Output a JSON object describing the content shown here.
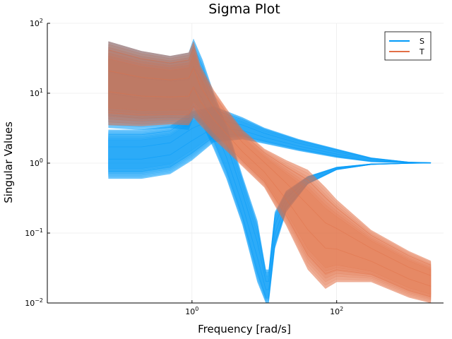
{
  "chart_data": {
    "type": "line",
    "title": "Sigma Plot",
    "xlabel": "Frequency [rad/s]",
    "ylabel": "Singular Values",
    "xscale": "log",
    "yscale": "log",
    "xlim": [
      0.01,
      3000
    ],
    "ylim": [
      0.01,
      100
    ],
    "x_ticks": [
      {
        "value": 1,
        "base": "10",
        "exp": "0"
      },
      {
        "value": 100,
        "base": "10",
        "exp": "2"
      }
    ],
    "y_ticks": [
      {
        "value": 0.01,
        "base": "10",
        "exp": "−2"
      },
      {
        "value": 0.1,
        "base": "10",
        "exp": "−1"
      },
      {
        "value": 1,
        "base": "10",
        "exp": "0"
      },
      {
        "value": 10,
        "base": "10",
        "exp": "1"
      },
      {
        "value": 100,
        "base": "10",
        "exp": "2"
      }
    ],
    "grid": true,
    "legend_position": "top-right",
    "series": [
      {
        "name": "S",
        "color": "#009af9",
        "bands": [
          {
            "points": [
              [
                0.07,
                0.6,
                3.0
              ],
              [
                0.2,
                0.6,
                3.0
              ],
              [
                0.5,
                0.7,
                3.4
              ],
              [
                1.0,
                1.1,
                5.5
              ],
              [
                2.0,
                2.0,
                6.5
              ],
              [
                5.0,
                2.2,
                4.5
              ],
              [
                10,
                1.9,
                3.2
              ],
              [
                30,
                1.5,
                2.2
              ],
              [
                100,
                1.2,
                1.6
              ],
              [
                300,
                1.04,
                1.2
              ],
              [
                1000,
                1.0,
                1.04
              ],
              [
                2000,
                1.0,
                1.02
              ]
            ]
          },
          {
            "points": [
              [
                0.07,
                3.2,
                55
              ],
              [
                0.2,
                3.0,
                40
              ],
              [
                0.5,
                3.2,
                34
              ],
              [
                0.9,
                3.0,
                38
              ],
              [
                1.05,
                4.5,
                60
              ],
              [
                1.4,
                3.5,
                30
              ],
              [
                2.0,
                1.6,
                10
              ],
              [
                3.0,
                0.6,
                3.5
              ],
              [
                5.0,
                0.13,
                0.65
              ],
              [
                8.0,
                0.02,
                0.15
              ],
              [
                10.5,
                0.01,
                0.03
              ],
              [
                11.5,
                0.01,
                0.03
              ],
              [
                14,
                0.06,
                0.2
              ],
              [
                20,
                0.2,
                0.4
              ],
              [
                40,
                0.5,
                0.65
              ],
              [
                100,
                0.8,
                0.88
              ],
              [
                300,
                0.95,
                0.98
              ],
              [
                1000,
                0.99,
                1.0
              ],
              [
                2000,
                1.0,
                1.0
              ]
            ]
          }
        ]
      },
      {
        "name": "T",
        "color": "#e26f46",
        "bands": [
          {
            "points": [
              [
                0.07,
                3.5,
                55
              ],
              [
                0.2,
                3.4,
                40
              ],
              [
                0.5,
                3.6,
                34
              ],
              [
                0.9,
                3.5,
                38
              ],
              [
                1.05,
                4.5,
                55
              ],
              [
                1.3,
                3.5,
                25
              ],
              [
                2.0,
                2.2,
                11
              ],
              [
                3.0,
                1.5,
                6.0
              ],
              [
                5.0,
                0.9,
                3.0
              ],
              [
                10,
                0.45,
                1.6
              ],
              [
                20,
                0.13,
                1.1
              ],
              [
                40,
                0.03,
                0.8
              ],
              [
                70,
                0.016,
                0.45
              ],
              [
                100,
                0.02,
                0.3
              ],
              [
                300,
                0.02,
                0.11
              ],
              [
                1000,
                0.012,
                0.055
              ],
              [
                2000,
                0.01,
                0.04
              ]
            ]
          }
        ]
      }
    ]
  }
}
